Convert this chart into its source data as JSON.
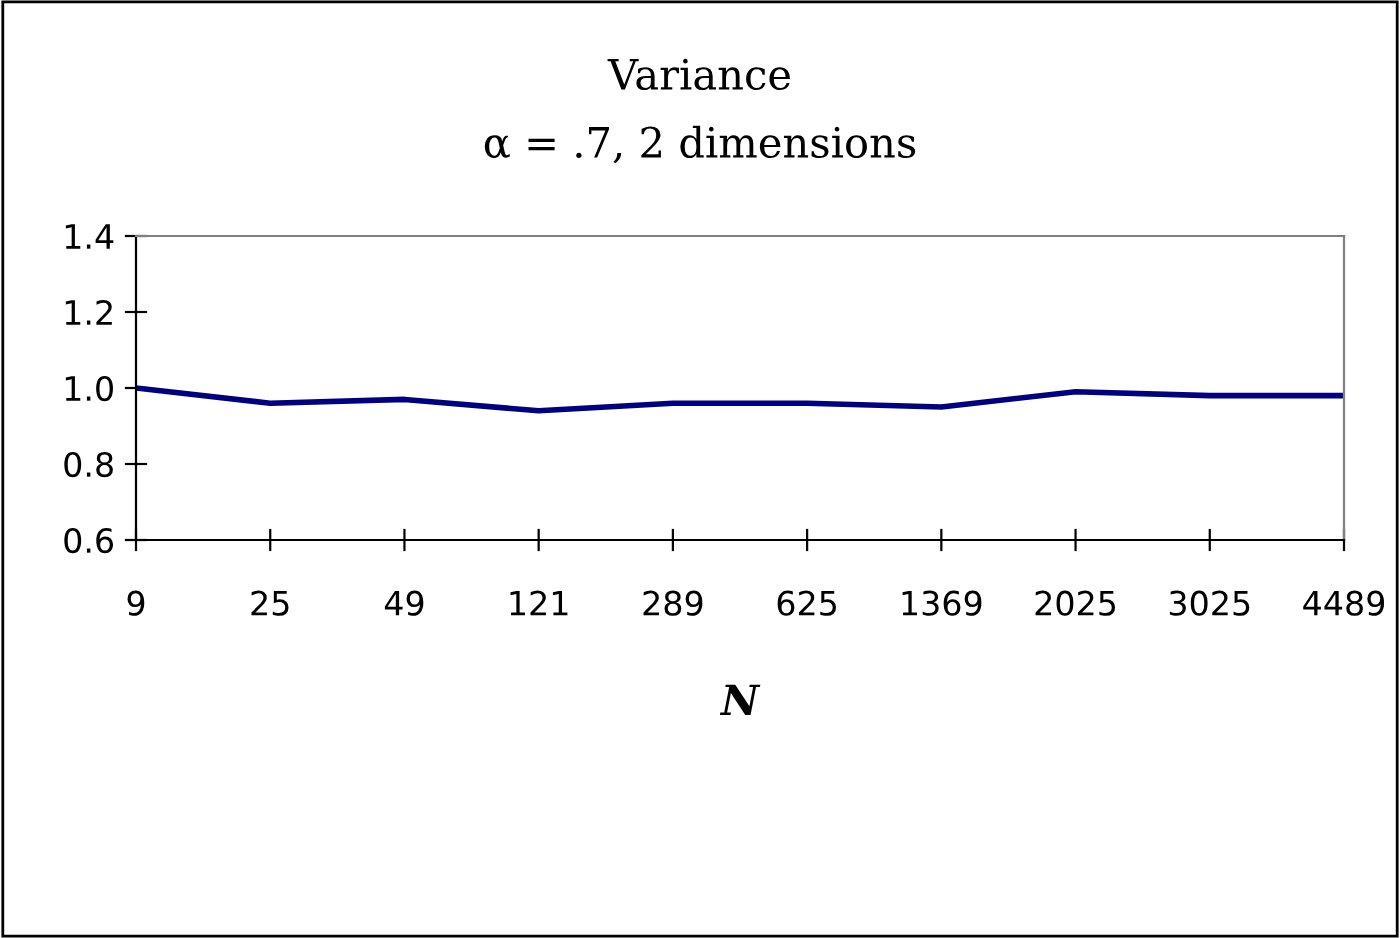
{
  "chart_data": {
    "type": "line",
    "title": "Variance",
    "subtitle": "α = .7, 2 dimensions",
    "xlabel": "N",
    "categories": [
      "9",
      "25",
      "49",
      "121",
      "289",
      "625",
      "1369",
      "2025",
      "3025",
      "4489"
    ],
    "series": [
      {
        "color": "#000080",
        "values": [
          1.0,
          0.96,
          0.97,
          0.94,
          0.96,
          0.96,
          0.95,
          0.99,
          0.98,
          0.98
        ]
      }
    ],
    "ylim": [
      0.6,
      1.4
    ],
    "yticks": [
      {
        "value": 0.6,
        "label": "0.6"
      },
      {
        "value": 0.8,
        "label": "0.8"
      },
      {
        "value": 1.0,
        "label": "1.0"
      },
      {
        "value": 1.2,
        "label": "1.2"
      },
      {
        "value": 1.4,
        "label": "1.4"
      }
    ],
    "grid": false,
    "legend": false,
    "marker": "none",
    "line_style": "solid"
  }
}
